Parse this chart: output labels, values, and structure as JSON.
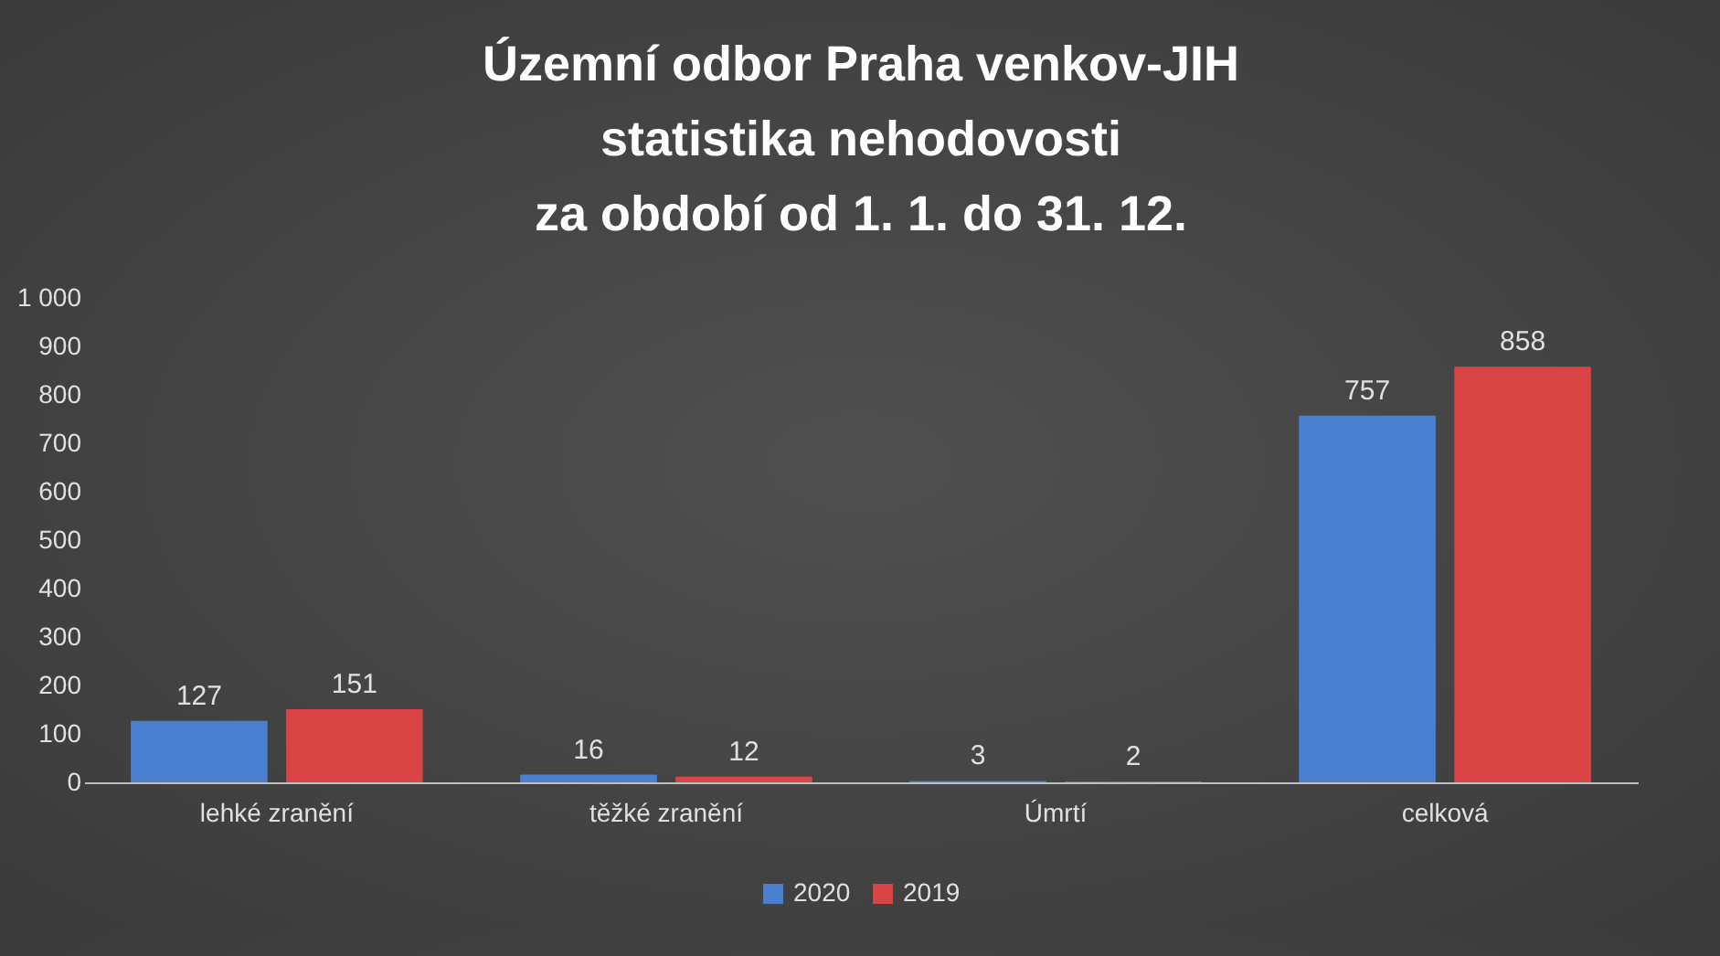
{
  "chart_data": {
    "type": "bar",
    "title": "Územní odbor Praha venkov-JIH\nstatistika nehodovosti\nza období od 1. 1. do 31. 12.",
    "categories": [
      "lehké zranění",
      "těžké zranění",
      "Úmrtí",
      "celková"
    ],
    "series": [
      {
        "name": "2020",
        "color": "#4a7fd0",
        "values": [
          127,
          16,
          3,
          757
        ]
      },
      {
        "name": "2019",
        "color": "#d94545",
        "values": [
          151,
          12,
          2,
          858
        ]
      }
    ],
    "ylim": [
      0,
      1000
    ],
    "yticks": [
      0,
      100,
      200,
      300,
      400,
      500,
      600,
      700,
      800,
      900,
      {
        "value": 1000,
        "label": "1 000"
      }
    ],
    "data_labels": true,
    "legend": "bottom"
  }
}
